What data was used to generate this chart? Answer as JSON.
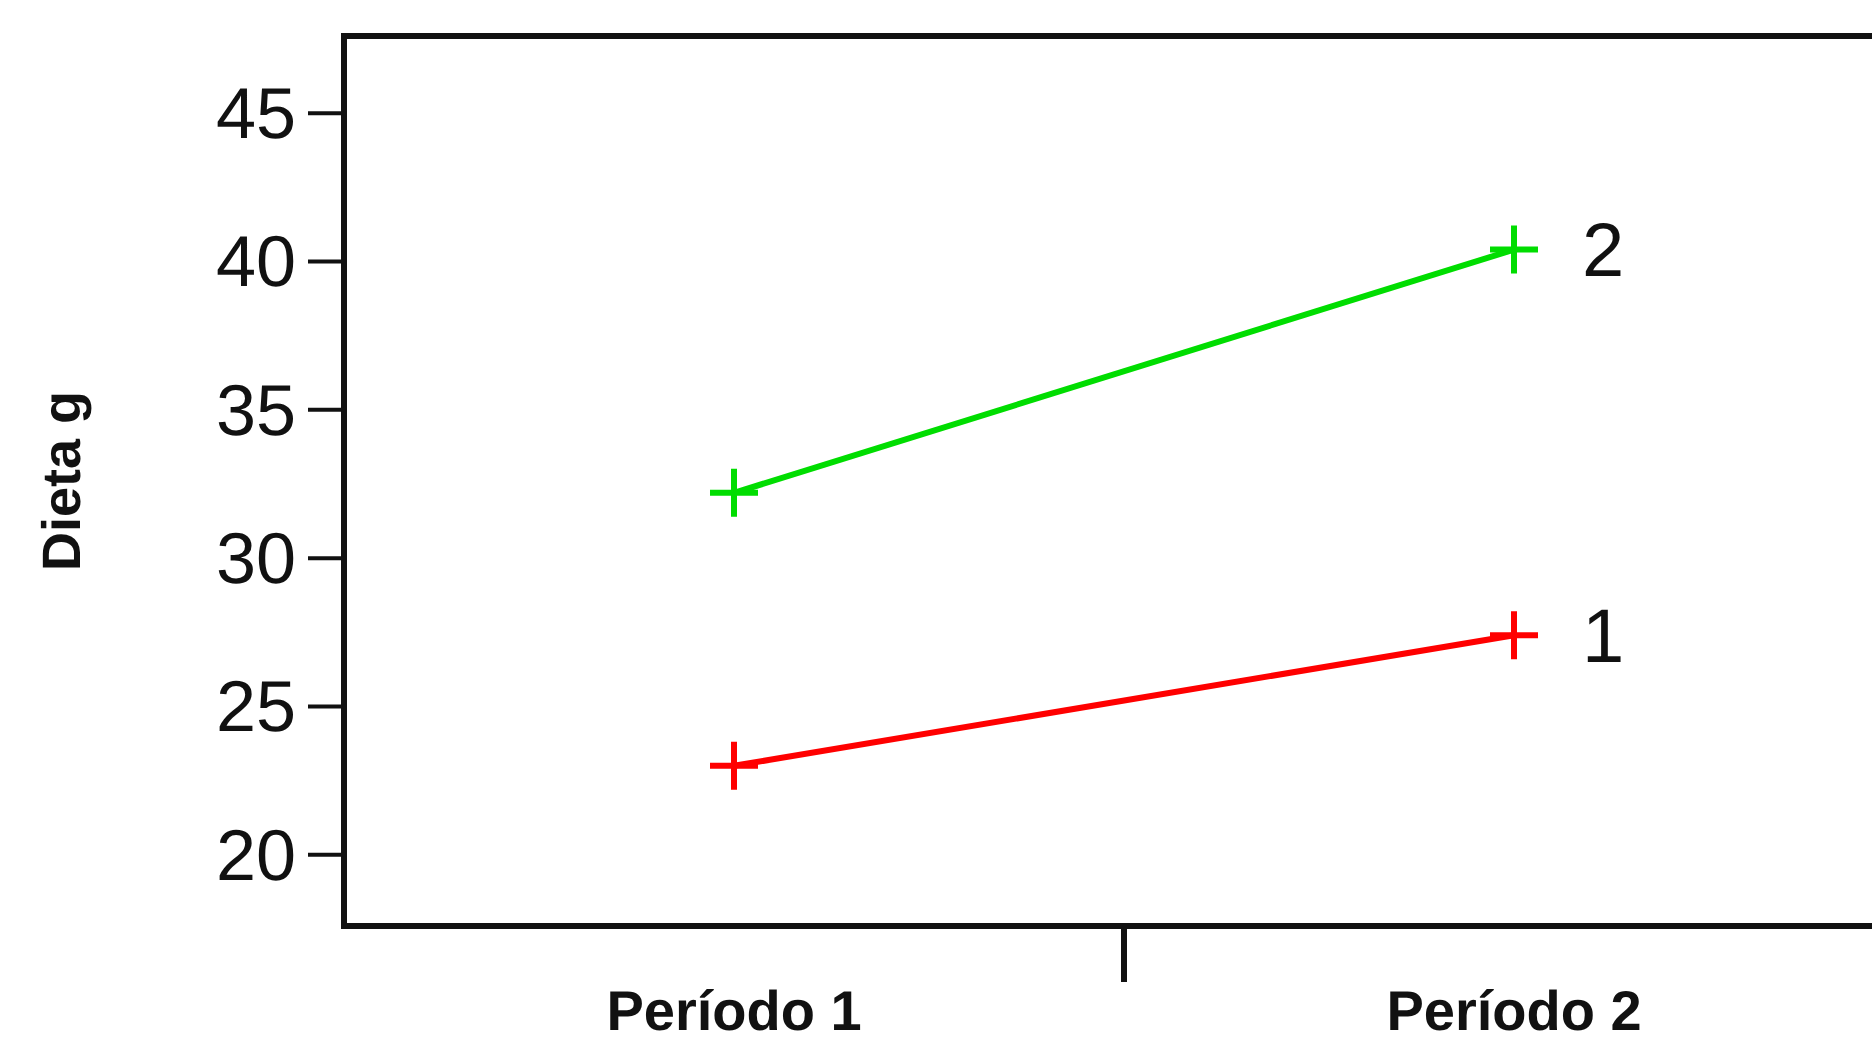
{
  "chart_data": {
    "type": "line",
    "ylabel": "Dieta g",
    "categories": [
      "Período 1",
      "Período 2"
    ],
    "series": [
      {
        "name": "1",
        "color": "#ff0000",
        "values": [
          23.0,
          27.4
        ],
        "marker": "cross"
      },
      {
        "name": "2",
        "color": "#00dd00",
        "values": [
          32.2,
          40.4
        ],
        "marker": "cross"
      }
    ],
    "ylim": [
      17.6,
      47.6
    ],
    "yticks": [
      20,
      25,
      30,
      35,
      40,
      45
    ],
    "grid": false,
    "legend": "right"
  }
}
